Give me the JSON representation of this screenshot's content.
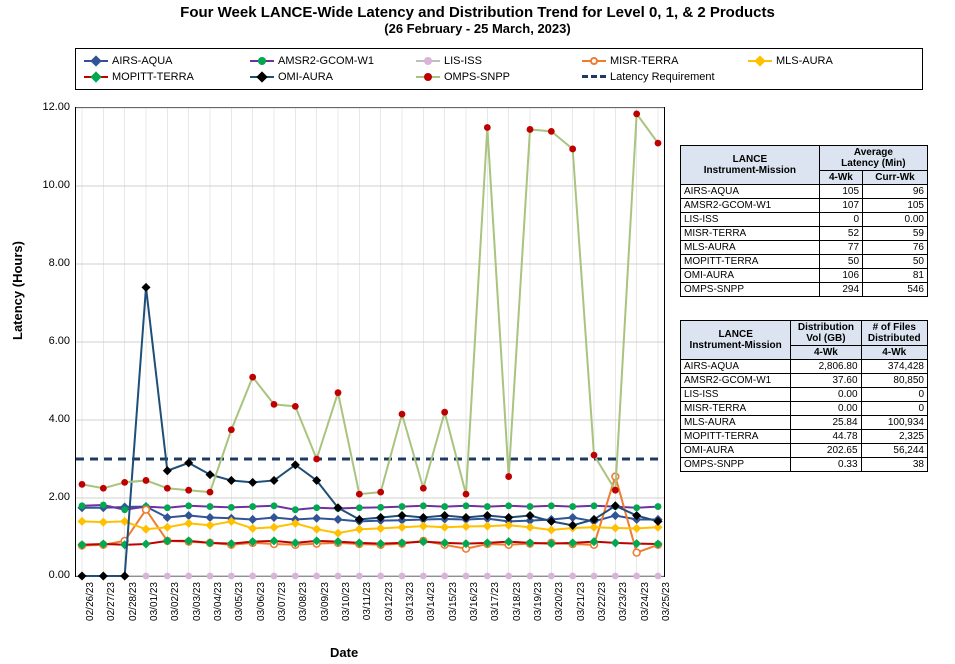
{
  "title": {
    "line1": "Four Week LANCE-Wide Latency and Distribution Trend for Level 0, 1, & 2 Products",
    "line2": "(26  February    -  25  March,  2023)"
  },
  "axes": {
    "ylabel": "Latency (Hours)",
    "xlabel": "Date",
    "label_fontsize": 13,
    "tick_fontsize": 11,
    "ylim": [
      0,
      12
    ],
    "ytick_step": 2,
    "ytick_format": "fixed2",
    "grid_color": "#d0d0d0",
    "border_color": "#000000",
    "background_color": "#ffffff"
  },
  "dates": [
    "02/26/23",
    "02/27/23",
    "02/28/23",
    "03/01/23",
    "03/02/23",
    "03/03/23",
    "03/04/23",
    "03/05/23",
    "03/06/23",
    "03/07/23",
    "03/08/23",
    "03/09/23",
    "03/10/23",
    "03/11/23",
    "03/12/23",
    "03/13/23",
    "03/14/23",
    "03/15/23",
    "03/16/23",
    "03/17/23",
    "03/18/23",
    "03/19/23",
    "03/20/23",
    "03/21/23",
    "03/22/23",
    "03/23/23",
    "03/24/23",
    "03/25/23"
  ],
  "requirement": {
    "name": "Latency Requirement",
    "value": 3.0,
    "color": "#1f3864",
    "dash": "8,6",
    "line_width": 3
  },
  "series": [
    {
      "key": "airs_aqua",
      "name": "AIRS-AQUA",
      "color": "#305496",
      "marker_color": "#305496",
      "marker": "diamond",
      "line_width": 2,
      "values": [
        1.75,
        1.75,
        1.77,
        1.78,
        1.5,
        1.55,
        1.5,
        1.48,
        1.45,
        1.5,
        1.45,
        1.48,
        1.45,
        1.4,
        1.42,
        1.43,
        1.45,
        1.46,
        1.45,
        1.47,
        1.4,
        1.42,
        1.45,
        1.5,
        1.4,
        1.55,
        1.45,
        1.45
      ]
    },
    {
      "key": "amsr2",
      "name": "AMSR2-GCOM-W1",
      "color": "#7030a0",
      "marker_color": "#00a84f",
      "marker": "circle",
      "line_width": 2,
      "values": [
        1.8,
        1.82,
        1.7,
        1.78,
        1.75,
        1.8,
        1.78,
        1.76,
        1.78,
        1.8,
        1.7,
        1.75,
        1.73,
        1.75,
        1.76,
        1.78,
        1.8,
        1.78,
        1.8,
        1.78,
        1.8,
        1.78,
        1.8,
        1.78,
        1.8,
        1.78,
        1.75,
        1.78
      ]
    },
    {
      "key": "lis_iss",
      "name": "LIS-ISS",
      "color": "#bfbfbf",
      "marker_color": "#d9b3d9",
      "marker": "circle",
      "line_width": 1.5,
      "values": [
        0,
        0,
        0,
        0,
        0,
        0,
        0,
        0,
        0,
        0,
        0,
        0,
        0,
        0,
        0,
        0,
        0,
        0,
        0,
        0,
        0,
        0,
        0,
        0,
        0,
        0,
        0,
        0
      ]
    },
    {
      "key": "misr_terra",
      "name": "MISR-TERRA",
      "color": "#ed7d31",
      "marker_color": "#ed7d31",
      "marker": "circle-open",
      "line_width": 2,
      "values": [
        0.78,
        0.8,
        0.9,
        1.7,
        0.9,
        0.88,
        0.85,
        0.8,
        0.85,
        0.82,
        0.8,
        0.83,
        0.85,
        0.82,
        0.8,
        0.83,
        0.9,
        0.8,
        0.7,
        0.82,
        0.8,
        0.83,
        0.85,
        0.82,
        0.8,
        2.55,
        0.6,
        0.8
      ]
    },
    {
      "key": "mls_aura",
      "name": "MLS-AURA",
      "color": "#ffc000",
      "marker_color": "#ffc000",
      "marker": "diamond",
      "line_width": 2,
      "values": [
        1.4,
        1.38,
        1.4,
        1.2,
        1.25,
        1.35,
        1.3,
        1.4,
        1.22,
        1.25,
        1.35,
        1.2,
        1.1,
        1.2,
        1.22,
        1.25,
        1.28,
        1.25,
        1.27,
        1.28,
        1.3,
        1.25,
        1.18,
        1.23,
        1.25,
        1.23,
        1.22,
        1.25
      ]
    },
    {
      "key": "mopitt",
      "name": "MOPITT-TERRA",
      "color": "#c00000",
      "marker_color": "#00a84f",
      "marker": "diamond",
      "line_width": 2,
      "values": [
        0.8,
        0.82,
        0.8,
        0.82,
        0.9,
        0.9,
        0.85,
        0.83,
        0.88,
        0.9,
        0.85,
        0.9,
        0.88,
        0.85,
        0.83,
        0.85,
        0.88,
        0.85,
        0.83,
        0.85,
        0.88,
        0.85,
        0.83,
        0.85,
        0.88,
        0.85,
        0.83,
        0.82
      ]
    },
    {
      "key": "omi_aura",
      "name": "OMI-AURA",
      "color": "#1f4e79",
      "marker_color": "#000000",
      "marker": "diamond",
      "line_width": 2,
      "values": [
        0.0,
        0.0,
        0.0,
        7.4,
        2.7,
        2.9,
        2.6,
        2.45,
        2.4,
        2.45,
        2.85,
        2.45,
        1.75,
        1.45,
        1.5,
        1.55,
        1.5,
        1.55,
        1.5,
        1.55,
        1.5,
        1.55,
        1.4,
        1.3,
        1.45,
        1.8,
        1.55,
        1.4
      ]
    },
    {
      "key": "omps",
      "name": "OMPS-SNPP",
      "color": "#a9c47f",
      "marker_color": "#c00000",
      "marker": "circle",
      "line_width": 2,
      "values": [
        2.35,
        2.25,
        2.4,
        2.45,
        2.25,
        2.2,
        2.15,
        3.75,
        5.1,
        4.4,
        4.35,
        3.0,
        4.7,
        2.1,
        2.15,
        4.15,
        2.25,
        4.2,
        2.1,
        11.5,
        2.55,
        11.45,
        11.4,
        10.95,
        3.1,
        2.2,
        11.85,
        11.1
      ]
    }
  ],
  "tables": {
    "latency": {
      "header_bg": "#dbe4f0",
      "border_color": "#000000",
      "header1": "LANCE\nInstrument-Mission",
      "header2": "Average\nLatency (Min)",
      "sub1": "4-Wk",
      "sub2": "Curr-Wk",
      "rows": [
        {
          "name": "AIRS-AQUA",
          "c1": "105",
          "c2": "96"
        },
        {
          "name": "AMSR2-GCOM-W1",
          "c1": "107",
          "c2": "105"
        },
        {
          "name": "LIS-ISS",
          "c1": "0",
          "c2": "0.00"
        },
        {
          "name": "MISR-TERRA",
          "c1": "52",
          "c2": "59"
        },
        {
          "name": "MLS-AURA",
          "c1": "77",
          "c2": "76"
        },
        {
          "name": "MOPITT-TERRA",
          "c1": "50",
          "c2": "50"
        },
        {
          "name": "OMI-AURA",
          "c1": "106",
          "c2": "81"
        },
        {
          "name": "OMPS-SNPP",
          "c1": "294",
          "c2": "546"
        }
      ]
    },
    "distribution": {
      "header_bg": "#dbe4f0",
      "border_color": "#000000",
      "header1": "LANCE\nInstrument-Mission",
      "header2": "Distribution\nVol (GB)",
      "header3": "# of Files\nDistributed",
      "sub1": "4-Wk",
      "sub2": "4-Wk",
      "rows": [
        {
          "name": "AIRS-AQUA",
          "c1": "2,806.80",
          "c2": "374,428"
        },
        {
          "name": "AMSR2-GCOM-W1",
          "c1": "37.60",
          "c2": "80,850"
        },
        {
          "name": "LIS-ISS",
          "c1": "0.00",
          "c2": "0"
        },
        {
          "name": "MISR-TERRA",
          "c1": "0.00",
          "c2": "0"
        },
        {
          "name": "MLS-AURA",
          "c1": "25.84",
          "c2": "100,934"
        },
        {
          "name": "MOPITT-TERRA",
          "c1": "44.78",
          "c2": "2,325"
        },
        {
          "name": "OMI-AURA",
          "c1": "202.65",
          "c2": "56,244"
        },
        {
          "name": "OMPS-SNPP",
          "c1": "0.33",
          "c2": "38"
        }
      ]
    }
  }
}
